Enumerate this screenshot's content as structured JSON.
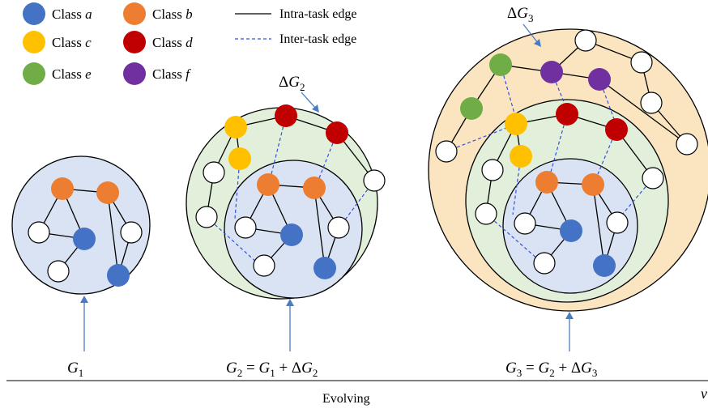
{
  "legend": {
    "classes": [
      {
        "prefix": "Class ",
        "name": "a",
        "color": "#4472c4"
      },
      {
        "prefix": "Class ",
        "name": "b",
        "color": "#ed7d31"
      },
      {
        "prefix": "Class ",
        "name": "c",
        "color": "#ffc000"
      },
      {
        "prefix": "Class ",
        "name": "d",
        "color": "#c00000"
      },
      {
        "prefix": "Class ",
        "name": "e",
        "color": "#70ad47"
      },
      {
        "prefix": "Class ",
        "name": "f",
        "color": "#7030a0"
      }
    ],
    "intra_label": "Intra-task edge",
    "inter_label": "Inter-task edge"
  },
  "colors": {
    "unlabeled": "#ffffff",
    "region_g1": "#dae3f3",
    "region_dg2": "#e2efda",
    "region_dg3": "#fbe5c0",
    "intra_edge": "#000000",
    "inter_edge": "#3050e0",
    "arrow": "#4a7cc4"
  },
  "graphs": [
    {
      "g": "G",
      "sub": "1",
      "rest": []
    },
    {
      "g": "G",
      "sub": "2",
      "rest": [
        " = ",
        "G",
        "1",
        " + Δ",
        "G",
        "2"
      ]
    },
    {
      "g": "G",
      "sub": "3",
      "rest": [
        " = ",
        "G",
        "2",
        " + Δ",
        "G",
        "3"
      ]
    }
  ],
  "delta_labels": [
    {
      "pre": "Δ",
      "g": "G",
      "sub": "2"
    },
    {
      "pre": "Δ",
      "g": "G",
      "sub": "3"
    }
  ],
  "axis_label": "Evolving",
  "corner_glyph": "v"
}
